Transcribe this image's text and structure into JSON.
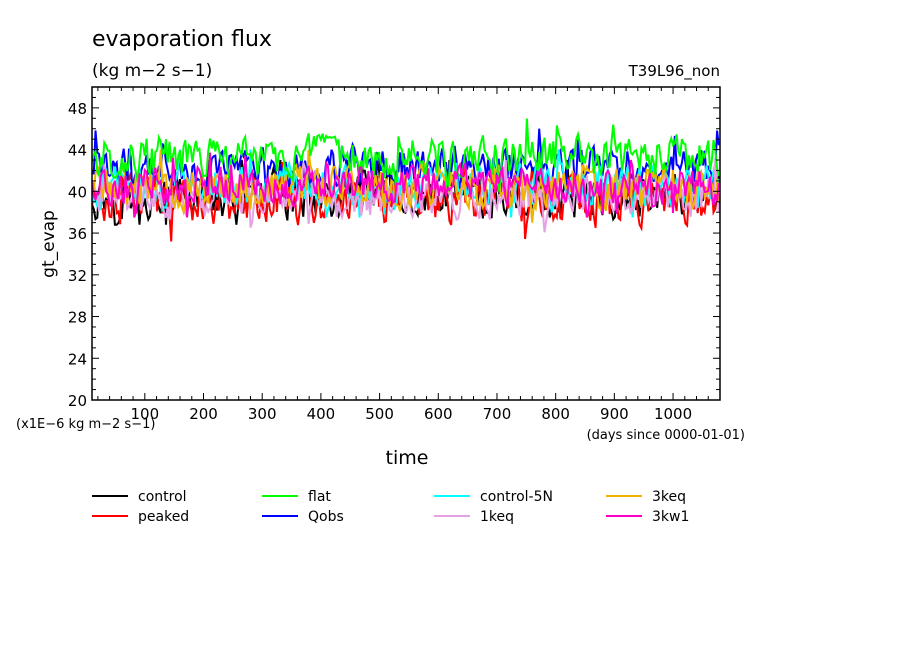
{
  "chart_data": {
    "type": "line",
    "title": "evaporation flux",
    "units_line": "(kg m−2 s−1)",
    "run_label": "T39L96_non",
    "ylabel": "gt_evap",
    "xlabel": "time",
    "y_multiplier_label": "(x1E−6 kg m−2 s−1)",
    "x_units_label": "(days since 0000-01-01)",
    "xlim": [
      10,
      1080
    ],
    "ylim": [
      20,
      50
    ],
    "x_ticks": [
      100,
      200,
      300,
      400,
      500,
      600,
      700,
      800,
      900,
      1000
    ],
    "y_ticks": [
      20,
      24,
      28,
      32,
      36,
      40,
      44,
      48
    ],
    "grid": false,
    "legend_position": "below",
    "series": [
      {
        "name": "control",
        "color": "#000000",
        "mean": 39.6,
        "amp": 1.6,
        "min": 36.8,
        "max": 43.0
      },
      {
        "name": "peaked",
        "color": "#ff0000",
        "mean": 39.3,
        "amp": 1.7,
        "min": 35.2,
        "max": 42.8
      },
      {
        "name": "flat",
        "color": "#00ff00",
        "mean": 43.2,
        "amp": 1.5,
        "min": 40.0,
        "max": 47.6
      },
      {
        "name": "Qobs",
        "color": "#0000ff",
        "mean": 42.3,
        "amp": 1.4,
        "min": 39.5,
        "max": 46.0
      },
      {
        "name": "control-5N",
        "color": "#00ffff",
        "mean": 40.6,
        "amp": 1.4,
        "min": 37.5,
        "max": 44.0
      },
      {
        "name": "1keq",
        "color": "#e6a0e6",
        "mean": 39.6,
        "amp": 1.5,
        "min": 36.0,
        "max": 43.0
      },
      {
        "name": "3keq",
        "color": "#f0b400",
        "mean": 40.4,
        "amp": 1.5,
        "min": 37.0,
        "max": 44.0
      },
      {
        "name": "3kw1",
        "color": "#ff00cc",
        "mean": 40.6,
        "amp": 1.3,
        "min": 37.5,
        "max": 44.0
      }
    ]
  }
}
